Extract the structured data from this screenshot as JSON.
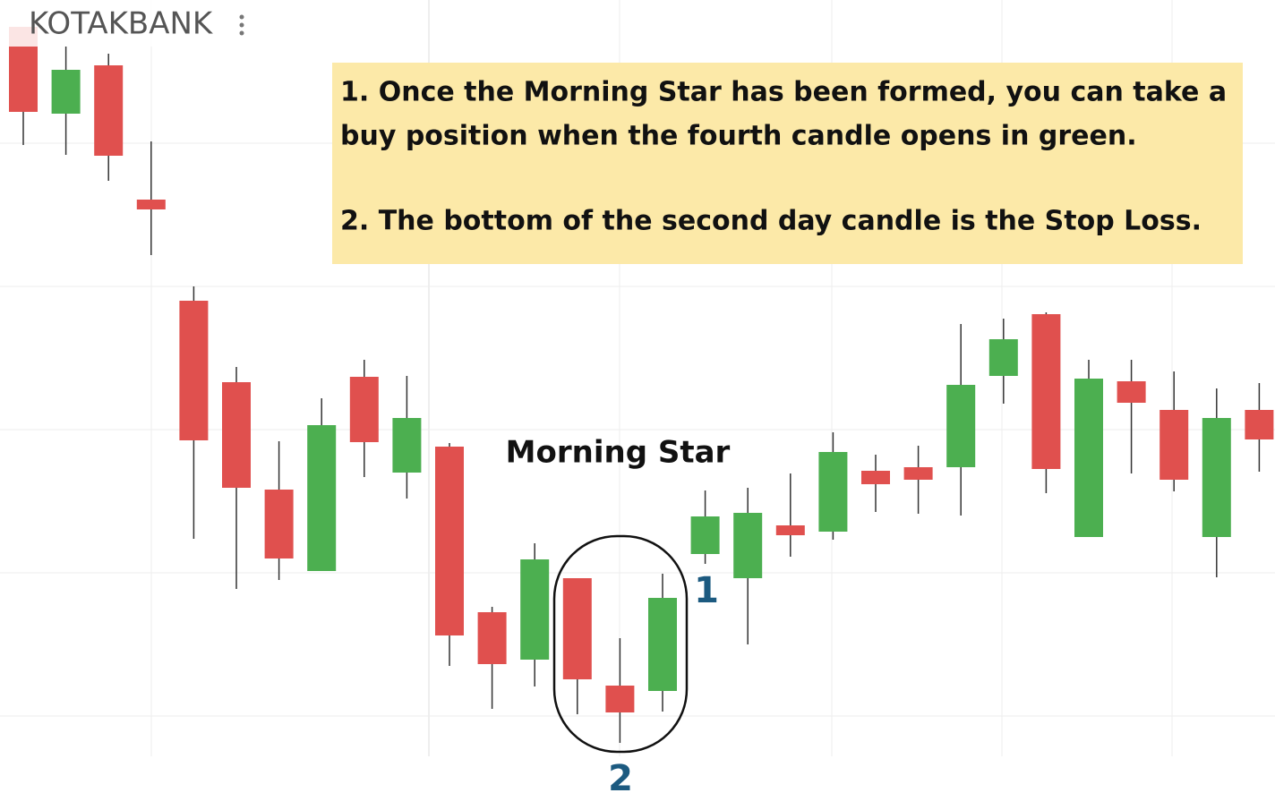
{
  "chart_data": {
    "type": "candlestick",
    "title": "KOTAKBANK",
    "open": [
      815,
      718,
      772,
      622,
      509,
      418,
      298,
      207,
      424,
      317,
      346,
      161,
      108,
      199,
      79,
      73,
      226,
      199,
      258,
      251,
      319,
      323,
      323,
      425,
      494,
      245,
      419,
      387,
      245,
      387
    ],
    "high": [
      815,
      793,
      785,
      687,
      525,
      435,
      352,
      400,
      443,
      425,
      350,
      167,
      238,
      199,
      132,
      204,
      297,
      300,
      316,
      362,
      337,
      347,
      483,
      489,
      496,
      443,
      443,
      430,
      411,
      417
    ],
    "low": [
      683,
      672,
      643,
      560,
      243,
      187,
      197,
      207,
      312,
      288,
      101,
      53,
      78,
      47,
      15,
      50,
      215,
      125,
      223,
      242,
      273,
      271,
      269,
      394,
      294,
      245,
      316,
      296,
      200,
      318
    ],
    "close": [
      720,
      767,
      671,
      611,
      353,
      300,
      221,
      370,
      351,
      378,
      135,
      103,
      220,
      86,
      49,
      177,
      268,
      272,
      247,
      340,
      304,
      309,
      415,
      466,
      321,
      422,
      395,
      309,
      378,
      354
    ],
    "up_color": "#4caf50",
    "down_color": "#e0504e",
    "ylim": [
      0,
      845
    ],
    "yticks": [
      45,
      205,
      365,
      525,
      685
    ],
    "grid": true,
    "annotation_lines": [
      "1. Once the Morning Star has been formed, you can take a",
      "buy position when the fourth candle opens in green.",
      "2. The bottom of the second day candle is the Stop Loss."
    ],
    "pattern_label": "Morning Star",
    "marker_1": "1",
    "marker_2": "2"
  }
}
